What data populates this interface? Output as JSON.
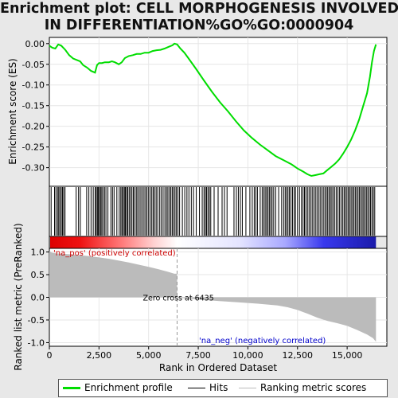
{
  "title": {
    "line1": "Enrichment plot: CELL MORPHOGENESIS INVOLVED",
    "line2": "IN DIFFERENTIATION%GO%GO:0000904"
  },
  "legend": {
    "items": [
      {
        "label": "Enrichment profile",
        "color": "#00dd00"
      },
      {
        "label": "Hits",
        "color": "#000000"
      },
      {
        "label": "Ranking metric scores",
        "color": "#bbbbbb"
      }
    ]
  },
  "chart_data": [
    {
      "type": "line",
      "panel": "enrichment-profile",
      "ylabel": "Enrichment score (ES)",
      "xlim": [
        0,
        17000
      ],
      "ylim": [
        -0.345,
        0.015
      ],
      "y_ticks": [
        0.0,
        -0.05,
        -0.1,
        -0.15,
        -0.2,
        -0.25,
        -0.3
      ],
      "y_tick_labels": [
        "0.00",
        "-0.05",
        "-0.10",
        "-0.15",
        "-0.20",
        "-0.25",
        "-0.30"
      ],
      "series": [
        {
          "color": "#00dd00",
          "x": [
            0,
            150,
            300,
            450,
            600,
            800,
            1000,
            1200,
            1400,
            1550,
            1700,
            1900,
            2100,
            2300,
            2400,
            2500,
            2650,
            2800,
            3000,
            3150,
            3300,
            3500,
            3650,
            3800,
            4000,
            4200,
            4400,
            4600,
            4800,
            5000,
            5200,
            5400,
            5600,
            5800,
            6000,
            6200,
            6300,
            6435,
            6600,
            6800,
            7000,
            7400,
            7800,
            8200,
            8600,
            9000,
            9400,
            9800,
            10200,
            10600,
            11000,
            11400,
            11800,
            12200,
            12500,
            12800,
            13000,
            13200,
            13400,
            13600,
            13800,
            14000,
            14200,
            14400,
            14600,
            14800,
            15000,
            15200,
            15400,
            15600,
            15800,
            16000,
            16150,
            16250,
            16350,
            16450
          ],
          "y": [
            -0.005,
            -0.01,
            -0.012,
            -0.002,
            -0.005,
            -0.015,
            -0.028,
            -0.036,
            -0.04,
            -0.043,
            -0.052,
            -0.058,
            -0.066,
            -0.07,
            -0.052,
            -0.047,
            -0.047,
            -0.045,
            -0.045,
            -0.043,
            -0.045,
            -0.05,
            -0.045,
            -0.035,
            -0.03,
            -0.028,
            -0.025,
            -0.025,
            -0.022,
            -0.022,
            -0.018,
            -0.016,
            -0.015,
            -0.012,
            -0.008,
            -0.004,
            0.0,
            -0.002,
            -0.012,
            -0.022,
            -0.035,
            -0.062,
            -0.09,
            -0.117,
            -0.142,
            -0.164,
            -0.188,
            -0.21,
            -0.228,
            -0.244,
            -0.258,
            -0.272,
            -0.282,
            -0.292,
            -0.302,
            -0.31,
            -0.316,
            -0.32,
            -0.318,
            -0.316,
            -0.314,
            -0.306,
            -0.298,
            -0.29,
            -0.28,
            -0.266,
            -0.25,
            -0.232,
            -0.21,
            -0.184,
            -0.152,
            -0.12,
            -0.08,
            -0.045,
            -0.018,
            -0.002
          ]
        }
      ]
    },
    {
      "type": "area",
      "panel": "ranked-list-metric",
      "xlabel": "Rank in Ordered Dataset",
      "ylabel": "Ranked list metric (PreRanked)",
      "xlim": [
        0,
        17000
      ],
      "ylim": [
        -1.08,
        1.08
      ],
      "x_ticks": [
        0,
        2500,
        5000,
        7500,
        10000,
        12500,
        15000
      ],
      "x_tick_labels": [
        "0",
        "2,500",
        "5,000",
        "7,500",
        "10,000",
        "12,500",
        "15,000"
      ],
      "y_ticks": [
        1.0,
        0.5,
        0.0,
        -0.5,
        -1.0
      ],
      "y_tick_labels": [
        "1.0",
        "0.5",
        "0.0",
        "-0.5",
        "-1.0"
      ],
      "x": [
        0,
        100,
        300,
        600,
        1000,
        1500,
        2000,
        2500,
        3000,
        3500,
        4000,
        4500,
        5000,
        5500,
        6000,
        6300,
        6435,
        6800,
        7500,
        8500,
        9500,
        10500,
        11500,
        12000,
        12500,
        13000,
        13500,
        14000,
        14500,
        15000,
        15500,
        16000,
        16300,
        16450
      ],
      "y": [
        1.02,
        0.99,
        0.97,
        0.96,
        0.95,
        0.93,
        0.91,
        0.88,
        0.85,
        0.81,
        0.77,
        0.72,
        0.67,
        0.62,
        0.56,
        0.52,
        0.0,
        -0.02,
        -0.05,
        -0.08,
        -0.11,
        -0.14,
        -0.18,
        -0.22,
        -0.28,
        -0.36,
        -0.45,
        -0.52,
        -0.57,
        -0.63,
        -0.72,
        -0.82,
        -0.9,
        -0.98
      ],
      "zero_cross": 6435,
      "zero_cross_label": "Zero cross at 6435",
      "pos_label": "'na_pos' (positively correlated)",
      "neg_label": "'na_neg' (negatively correlated)",
      "pos_label_color": "#cc0000",
      "neg_label_color": "#0000cc"
    }
  ],
  "hits": [
    90,
    260,
    330,
    410,
    470,
    530,
    600,
    660,
    720,
    790,
    1350,
    1470,
    1560,
    1880,
    1990,
    2100,
    2210,
    2310,
    2360,
    2420,
    2470,
    2520,
    2580,
    2640,
    2700,
    2780,
    2850,
    2950,
    3100,
    3180,
    3260,
    3400,
    3520,
    3600,
    3660,
    3720,
    3780,
    3830,
    3890,
    3950,
    4020,
    4090,
    4160,
    4230,
    4300,
    4380,
    4450,
    4530,
    4610,
    4690,
    4770,
    4850,
    4920,
    5000,
    5080,
    5160,
    5230,
    5300,
    5380,
    5460,
    5560,
    5640,
    5730,
    5820,
    5900,
    5970,
    6050,
    6120,
    6190,
    6260,
    6330,
    6400,
    6480,
    6560,
    6700,
    6820,
    6930,
    7030,
    7150,
    7260,
    7400,
    7560,
    7700,
    7790,
    7860,
    7920,
    7990,
    8060,
    8130,
    8300,
    8500,
    8700,
    8820,
    8950,
    9300,
    9420,
    9520,
    9620,
    9720,
    9900,
    10100,
    10220,
    10320,
    10400,
    10480,
    10620,
    10720,
    10800,
    10870,
    10940,
    11010,
    11080,
    11150,
    11220,
    11300,
    11400,
    11550,
    11700,
    11800,
    11880,
    11950,
    12020,
    12090,
    12170,
    12250,
    12330,
    12400,
    12500,
    12600,
    12700,
    12780,
    12850,
    12920,
    13000,
    13080,
    13160,
    13240,
    13320,
    13400,
    13480,
    13560,
    13640,
    13720,
    13800,
    13880,
    13950,
    14020,
    14090,
    14160,
    14230,
    14300,
    14380,
    14460,
    14540,
    14620,
    14700,
    14780,
    14850,
    14920,
    14990,
    15060,
    15130,
    15200,
    15270,
    15340,
    15410,
    15480,
    15550,
    15620,
    15690,
    15760,
    15830,
    15900,
    15970,
    16040,
    16110,
    16180,
    16250,
    16320,
    16390
  ]
}
